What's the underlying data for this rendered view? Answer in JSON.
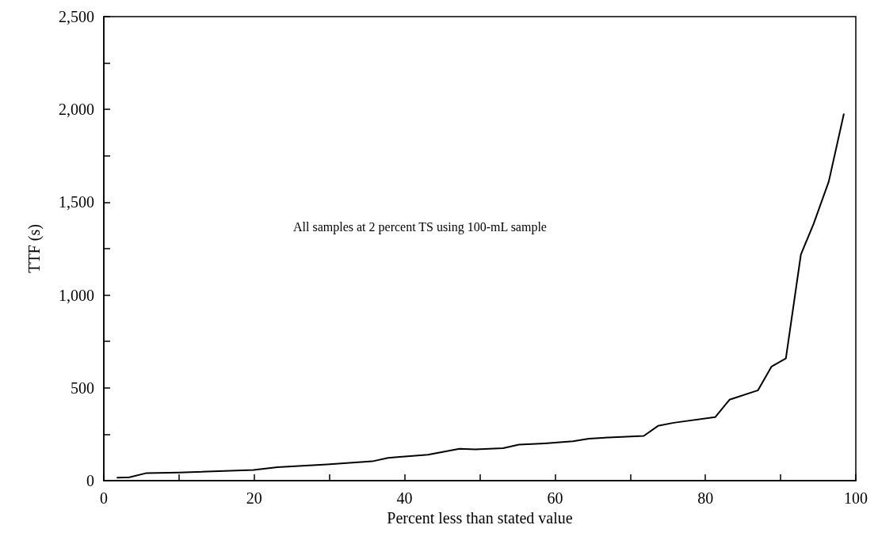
{
  "chart_data": {
    "type": "line",
    "xlabel": "Percent less than stated value",
    "ylabel": "TTF (s)",
    "annotations": [
      "All samples at 2 percent TS using 100-mL sample"
    ],
    "series": [
      {
        "color": "#000000",
        "x": [
          1.8,
          3.4,
          5.7,
          10,
          19.9,
          23.1,
          29.7,
          35.7,
          37.8,
          43.1,
          47.3,
          49.4,
          53.1,
          55.2,
          58.6,
          62.4,
          64.5,
          67.7,
          71.8,
          73.7,
          75.8,
          81.3,
          83.2,
          87.0,
          88.8,
          90.7,
          92.7,
          94.4,
          96.4,
          98.4
        ],
        "values": [
          16,
          18,
          41,
          44,
          58,
          73,
          87,
          104,
          123,
          140,
          172,
          168,
          175,
          194,
          201,
          212,
          226,
          234,
          241,
          295,
          312,
          342,
          436,
          487,
          615,
          659,
          1219,
          1385,
          1611,
          1974
        ]
      }
    ],
    "xlim": [
      0,
      100
    ],
    "xticks": [
      0,
      {
        "value": 10,
        "label": null
      },
      20,
      {
        "value": 30,
        "label": null
      },
      40,
      {
        "value": 50,
        "label": null
      },
      60,
      {
        "value": 70,
        "label": null
      },
      80,
      {
        "value": 90,
        "label": null
      },
      100
    ],
    "ylim": [
      0,
      2500
    ],
    "yticks": [
      0,
      {
        "value": 250,
        "label": null
      },
      500,
      {
        "value": 750,
        "label": null
      },
      {
        "value": 1000,
        "label": "1,000"
      },
      {
        "value": 1250,
        "label": null
      },
      {
        "value": 1500,
        "label": "1,500"
      },
      {
        "value": 1750,
        "label": null
      },
      {
        "value": 2000,
        "label": "2,000"
      },
      {
        "value": 2250,
        "label": null
      },
      {
        "value": 2500,
        "label": "2,500"
      }
    ],
    "grid": false,
    "marker": "none",
    "line_style": "solid"
  }
}
